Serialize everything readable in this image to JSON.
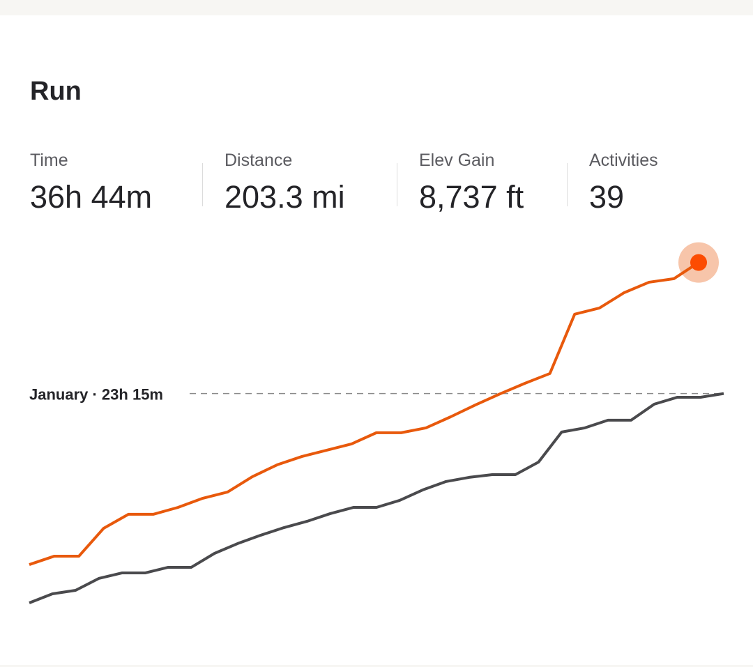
{
  "header": {
    "title": "Run"
  },
  "stats": [
    {
      "label": "Time",
      "value": "36h 44m"
    },
    {
      "label": "Distance",
      "value": "203.3 mi"
    },
    {
      "label": "Elev Gain",
      "value": "8,737 ft"
    },
    {
      "label": "Activities",
      "value": "39"
    }
  ],
  "chart_data": {
    "type": "line",
    "ylim": [
      0,
      40
    ],
    "reference": {
      "value": 23.25,
      "label": "January · 23h 15m"
    },
    "series": [
      {
        "color": "#e8590c",
        "values": [
          5.66,
          6.52,
          6.52,
          9.39,
          10.83,
          10.83,
          11.54,
          12.48,
          13.12,
          14.7,
          15.92,
          16.78,
          17.42,
          18.07,
          19.22,
          19.22,
          19.72,
          20.86,
          22.08,
          23.23,
          24.31,
          25.31,
          31.41,
          32.05,
          33.63,
          34.7,
          35.06,
          36.73
        ]
      },
      {
        "color": "#4a4a4d",
        "values": [
          1.72,
          2.65,
          3.01,
          4.23,
          4.8,
          4.8,
          5.38,
          5.38,
          6.81,
          7.82,
          8.68,
          9.46,
          10.11,
          10.9,
          11.54,
          11.54,
          12.26,
          13.34,
          14.2,
          14.63,
          14.91,
          14.91,
          16.2,
          19.29,
          19.72,
          20.51,
          20.51,
          22.16,
          22.87,
          22.87,
          23.25
        ]
      }
    ]
  }
}
